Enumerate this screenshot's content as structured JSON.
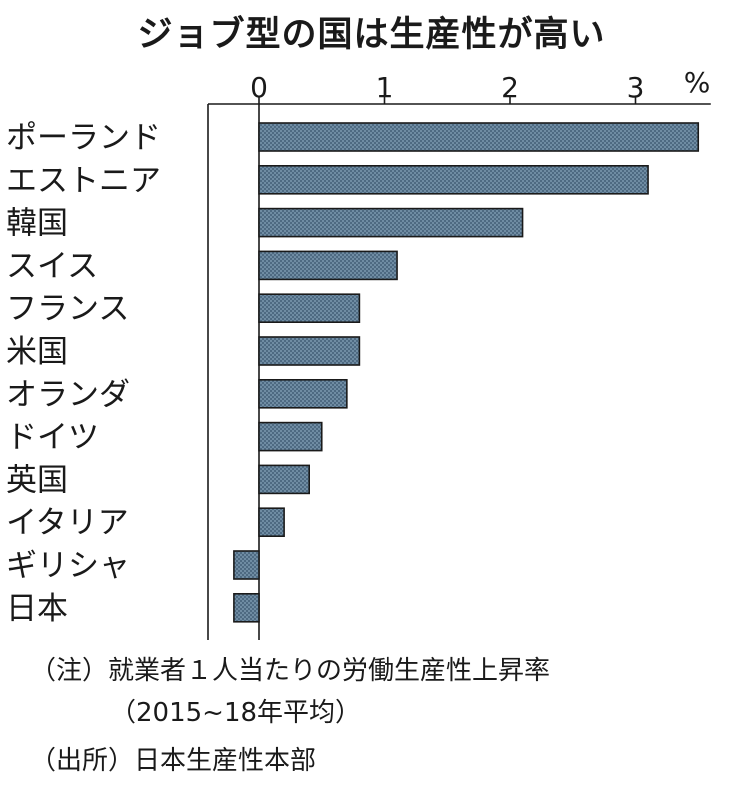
{
  "chart_data": {
    "type": "bar",
    "orientation": "horizontal",
    "title": "ジョブ型の国は生産性が高い",
    "unit": "%",
    "categories": [
      "ポーランド",
      "エストニア",
      "韓国",
      "スイス",
      "フランス",
      "米国",
      "オランダ",
      "ドイツ",
      "英国",
      "イタリア",
      "ギリシャ",
      "日本"
    ],
    "values": [
      3.5,
      3.1,
      2.1,
      1.1,
      0.8,
      0.8,
      0.7,
      0.5,
      0.4,
      0.2,
      -0.2,
      -0.2
    ],
    "x_ticks": [
      "0",
      "1",
      "2",
      "3"
    ],
    "xlim": [
      -0.4,
      3.6
    ],
    "grid": false,
    "bar_color": "#5f7d96",
    "bar_border_color": "#1a1a1a"
  },
  "notes": {
    "definition": "（注）就業者１人当たりの労働生産性上昇率",
    "period": "（2015~18年平均）",
    "source": "（出所）日本生産性本部"
  }
}
